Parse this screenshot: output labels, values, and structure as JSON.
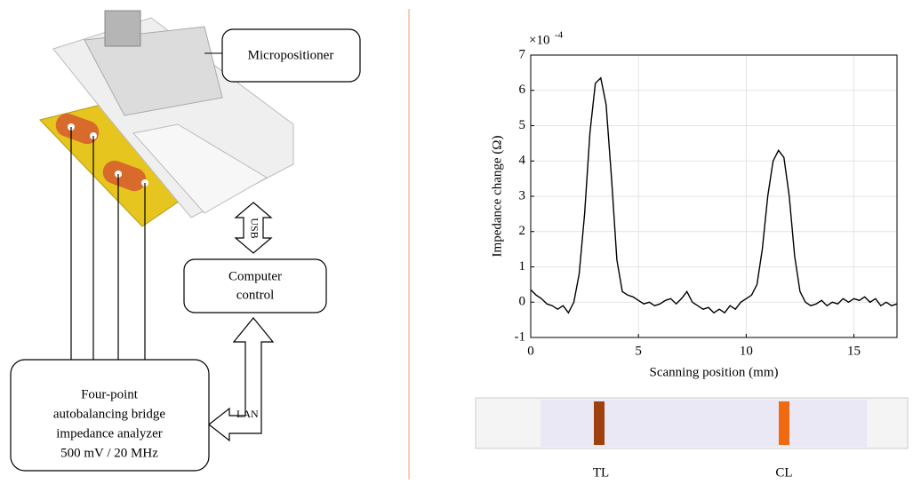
{
  "diagram": {
    "micropositioner": "Micropositioner",
    "usb": "USB",
    "computer": [
      "Computer",
      "control"
    ],
    "lan": "LAN",
    "analyzer": [
      "Four-point",
      "autobalancing bridge",
      "impedance analyzer",
      "500 mV / 20 MHz"
    ]
  },
  "chart_data": {
    "type": "line",
    "x": [
      0,
      0.25,
      0.5,
      0.75,
      1,
      1.25,
      1.5,
      1.75,
      2,
      2.25,
      2.5,
      2.75,
      3,
      3.25,
      3.5,
      3.75,
      4,
      4.25,
      4.5,
      4.75,
      5,
      5.25,
      5.5,
      5.75,
      6,
      6.25,
      6.5,
      6.75,
      7,
      7.25,
      7.5,
      7.75,
      8,
      8.25,
      8.5,
      8.75,
      9,
      9.25,
      9.5,
      9.75,
      10,
      10.25,
      10.5,
      10.75,
      11,
      11.25,
      11.5,
      11.75,
      12,
      12.25,
      12.5,
      12.75,
      13,
      13.25,
      13.5,
      13.75,
      14,
      14.25,
      14.5,
      14.75,
      15,
      15.25,
      15.5,
      15.75,
      16,
      16.25,
      16.5,
      16.75,
      17
    ],
    "values": [
      0.35,
      0.2,
      0.1,
      -0.05,
      -0.1,
      -0.2,
      -0.1,
      -0.3,
      0.0,
      0.8,
      2.5,
      4.8,
      6.2,
      6.35,
      5.6,
      3.5,
      1.2,
      0.3,
      0.2,
      0.15,
      0.05,
      -0.05,
      0.0,
      -0.1,
      -0.05,
      0.05,
      0.1,
      -0.05,
      0.1,
      0.3,
      0.0,
      -0.1,
      -0.2,
      -0.15,
      -0.3,
      -0.2,
      -0.3,
      -0.1,
      -0.2,
      0.0,
      0.1,
      0.2,
      0.5,
      1.5,
      3.0,
      4.0,
      4.3,
      4.1,
      3.0,
      1.3,
      0.3,
      0.0,
      -0.1,
      -0.05,
      0.05,
      -0.1,
      0.0,
      -0.05,
      0.1,
      0.0,
      0.1,
      0.05,
      0.15,
      0.0,
      0.1,
      -0.1,
      0.0,
      -0.1,
      -0.05
    ],
    "color": "#000000",
    "xlabel": "Scanning position (mm)",
    "ylabel": "Impedance change (Ω)",
    "y_scale": "×10",
    "y_scale_exponent": "-4",
    "xlim": [
      0,
      17
    ],
    "ylim": [
      -1,
      7
    ],
    "xticks": [
      0,
      5,
      10,
      15
    ],
    "yticks": [
      -1,
      0,
      1,
      2,
      3,
      4,
      5,
      6,
      7
    ],
    "grid": true
  },
  "strip": {
    "labels": [
      "TL",
      "CL"
    ]
  }
}
